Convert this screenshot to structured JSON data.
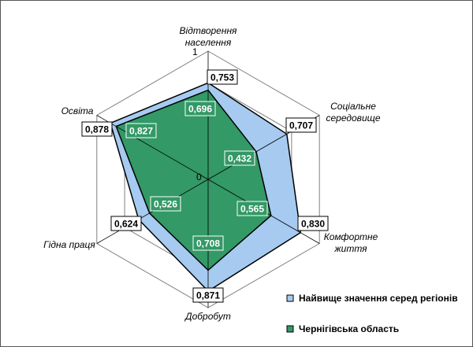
{
  "chart_data": {
    "type": "radar",
    "title": "",
    "axes": [
      {
        "lines": [
          "Відтворення",
          "населення"
        ]
      },
      {
        "lines": [
          "Соціальне",
          "середовище"
        ]
      },
      {
        "lines": [
          "Комфортне",
          "життя"
        ]
      },
      {
        "lines": [
          "Добробут"
        ]
      },
      {
        "lines": [
          "Гідна праця"
        ]
      },
      {
        "lines": [
          "Освіта"
        ]
      }
    ],
    "range": [
      0,
      1
    ],
    "scale_labels": {
      "min": "0",
      "max": "1"
    },
    "gridlines": 4,
    "series": [
      {
        "name": "Найвище значення серед регіонів",
        "color": "#a6caf0",
        "values": [
          0.753,
          0.707,
          0.83,
          0.871,
          0.624,
          0.878
        ],
        "labels": [
          "0,753",
          "0,707",
          "0,830",
          "0,871",
          "0,624",
          "0,878"
        ]
      },
      {
        "name": "Чернігівська область",
        "color": "#339966",
        "values": [
          0.696,
          0.432,
          0.565,
          0.708,
          0.526,
          0.827
        ],
        "labels": [
          "0,696",
          "0,432",
          "0,565",
          "0,708",
          "0,526",
          "0,827"
        ]
      }
    ],
    "legend_position": "bottom-right"
  }
}
